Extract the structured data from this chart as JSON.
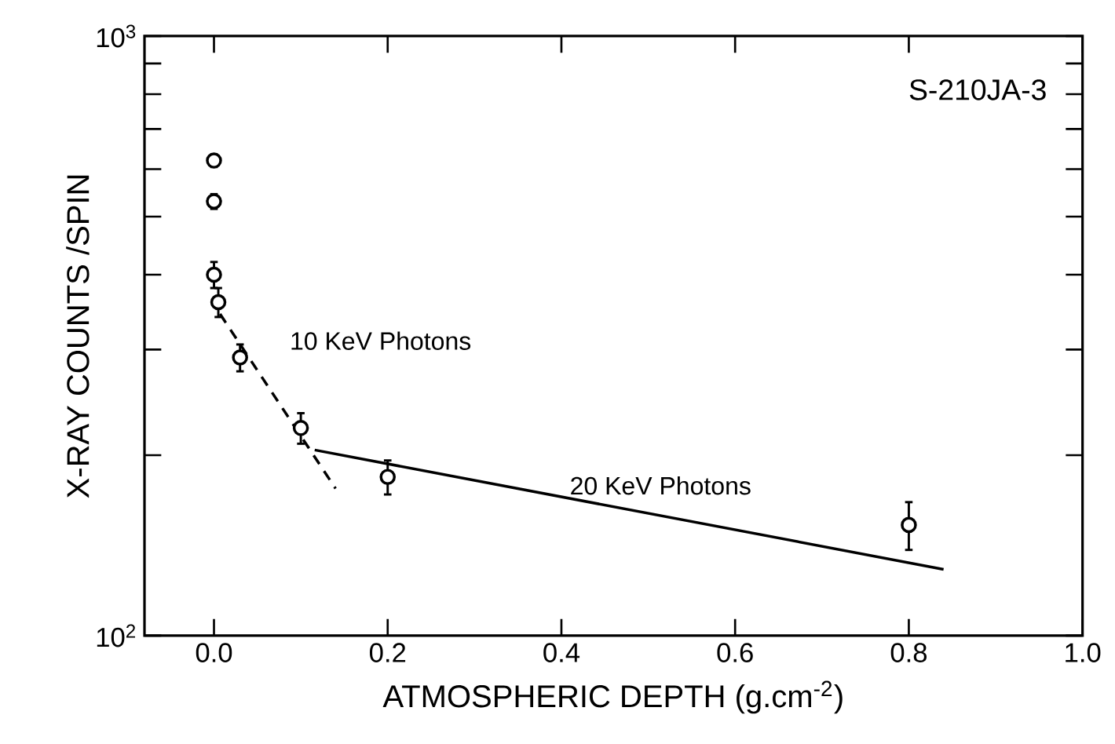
{
  "chart_data": {
    "type": "scatter",
    "xlabel": "ATMOSPHERIC DEPTH (g.cm$^{-2}$)",
    "ylabel": "X-RAY COUNTS /SPIN",
    "annotations": [
      "S-210JA-3"
    ],
    "log": "y",
    "grid": false,
    "xlim": [
      -0.08,
      1.0
    ],
    "ylim": [
      100,
      1000
    ],
    "xticks": [
      {
        "value": 0,
        "label": "0.0"
      },
      {
        "value": 0.2,
        "label": "0.2"
      },
      {
        "value": 0.4,
        "label": "0.4"
      },
      {
        "value": 0.6,
        "label": "0.6"
      },
      {
        "value": 0.8,
        "label": "0.8"
      },
      {
        "value": 1.0,
        "label": "1.0"
      }
    ],
    "yticks": [
      {
        "value": 100,
        "label": "10$^{2}$"
      },
      {
        "value": 200,
        "label": null
      },
      {
        "value": 300,
        "label": null
      },
      {
        "value": 400,
        "label": null
      },
      {
        "value": 500,
        "label": null
      },
      {
        "value": 600,
        "label": null
      },
      {
        "value": 700,
        "label": null
      },
      {
        "value": 800,
        "label": null
      },
      {
        "value": 900,
        "label": null
      },
      {
        "value": 1000,
        "label": "10$^{3}$"
      }
    ],
    "series": [
      {
        "color": "#000000",
        "x": [
          0,
          0,
          0,
          0.005,
          0.03,
          0.1,
          0.2,
          0.8
        ],
        "values": [
          620,
          530,
          400,
          360,
          291,
          222,
          184,
          153
        ],
        "errors": [
          15,
          15,
          20,
          20,
          15,
          13,
          12,
          14
        ]
      },
      {
        "type": "line",
        "name": "10 KeV Photons",
        "color": "#000000",
        "line_style": "dashed",
        "x": [
          0.007,
          0.14
        ],
        "values": [
          344,
          176
        ]
      },
      {
        "type": "line",
        "name": "20 KeV Photons",
        "color": "#000000",
        "line_style": "solid",
        "x": [
          0.116,
          0.84
        ],
        "values": [
          204,
          129
        ]
      }
    ]
  }
}
